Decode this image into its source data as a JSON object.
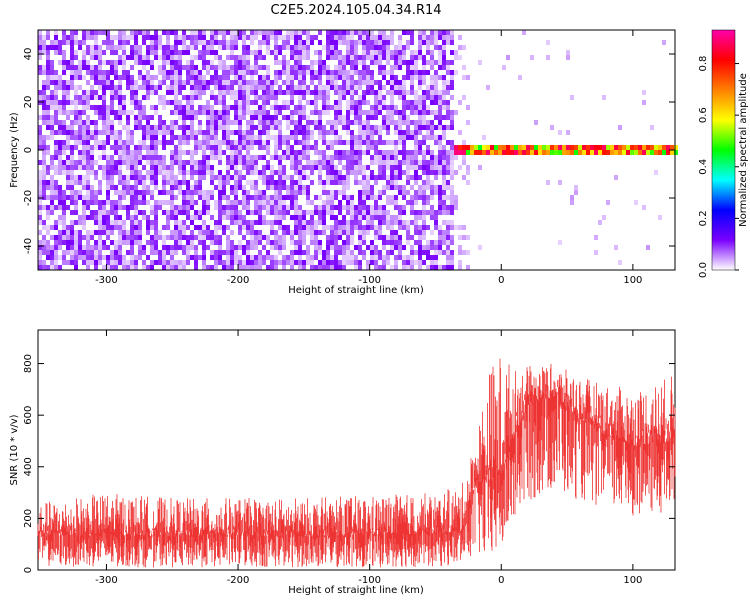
{
  "title": "C2E5.2024.105.04.34.R14",
  "chart_data": [
    {
      "type": "heatmap",
      "xlabel": "Height of straight line (km)",
      "ylabel": "Frequency (Hz)",
      "xlim": [
        -352,
        132
      ],
      "ylim": [
        -50,
        50
      ],
      "xticks": [
        -300,
        -200,
        -100,
        0,
        100
      ],
      "yticks": [
        -40,
        -20,
        0,
        20,
        40
      ],
      "colorbar": {
        "label": "Normalized spectral amplitude",
        "range": [
          0,
          0.93
        ],
        "ticks": [
          0.0,
          0.2,
          0.4,
          0.6,
          0.8
        ],
        "tick_labels": [
          "0.0",
          "0.2",
          "0.4",
          "0.6",
          "0.8"
        ],
        "colors": [
          "#ffffff",
          "#7a00ff",
          "#0000ff",
          "#00ffff",
          "#00ff00",
          "#ffff00",
          "#ff8000",
          "#ff0000",
          "#ff00aa"
        ]
      },
      "description_regions": [
        {
          "x_range": [
            -352,
            -35
          ],
          "freq_range": [
            -50,
            50
          ],
          "level": "broadband noise 0.05-0.3"
        },
        {
          "x_range": [
            -37,
            132
          ],
          "freq_center": 0,
          "freq_halfwidth": 3,
          "level": "narrow carrier 0.3-0.9"
        }
      ]
    },
    {
      "type": "line",
      "xlabel": "Height of straight line (km)",
      "ylabel": "SNR (10 * v/v)",
      "xlim": [
        -352,
        132
      ],
      "ylim": [
        0,
        930
      ],
      "xticks": [
        -300,
        -200,
        -100,
        0,
        100
      ],
      "yticks": [
        0,
        200,
        400,
        600,
        800
      ],
      "color": "#ee3333",
      "envelope": {
        "x": [
          -352,
          -300,
          -250,
          -200,
          -150,
          -100,
          -50,
          -30,
          -20,
          -10,
          0,
          10,
          20,
          40,
          60,
          80,
          100,
          132
        ],
        "low": [
          15,
          10,
          10,
          10,
          10,
          10,
          10,
          20,
          60,
          30,
          80,
          180,
          260,
          300,
          270,
          230,
          210,
          220
        ],
        "high": [
          260,
          300,
          280,
          280,
          280,
          290,
          300,
          330,
          500,
          780,
          860,
          780,
          790,
          800,
          750,
          720,
          700,
          760
        ],
        "mean": [
          130,
          135,
          130,
          135,
          130,
          135,
          140,
          150,
          330,
          350,
          350,
          520,
          640,
          670,
          580,
          520,
          480,
          500
        ]
      }
    }
  ]
}
